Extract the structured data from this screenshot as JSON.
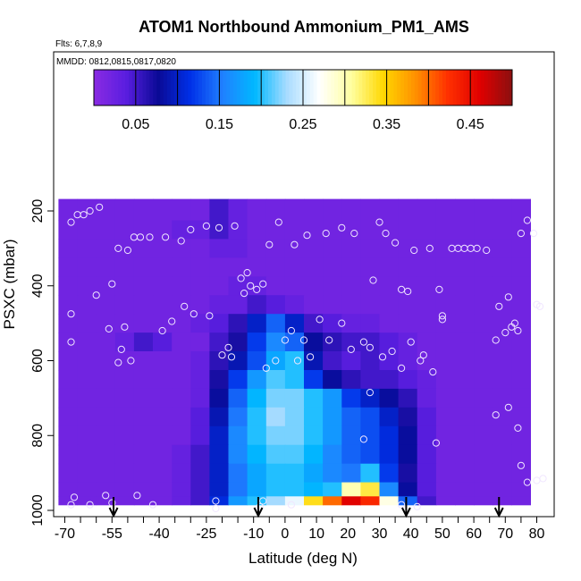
{
  "chart_data": {
    "type": "heatmap",
    "title": "ATOM1 Northbound Ammonium_PM1_AMS",
    "flights_label": "Flts: 6,7,8,9",
    "dates_label": "MMDD: 0812,0815,0817,0820",
    "xlabel": "Latitude (deg N)",
    "ylabel": "PSXC (mbar)",
    "xlim": [
      -70,
      85
    ],
    "ylim": [
      1000,
      0
    ],
    "x_ticks": [
      "-70",
      "-65",
      "-60",
      "-55",
      "-50",
      "-45",
      "-40",
      "-35",
      "-30",
      "-25",
      "-20",
      "-15",
      "-10",
      "-5",
      "0",
      "5",
      "10",
      "15",
      "20",
      "25",
      "30",
      "35",
      "40",
      "45",
      "50",
      "55",
      "60",
      "65",
      "70",
      "75",
      "80"
    ],
    "x_tick_labels": [
      "-70",
      "-55",
      "-40",
      "-25",
      "-10",
      "0",
      "10",
      "20",
      "30",
      "40",
      "50",
      "60",
      "70",
      "80"
    ],
    "y_ticks": [
      200,
      400,
      600,
      800,
      1000
    ],
    "y_tick_labels": [
      "200",
      "400",
      "600",
      "800",
      "1000"
    ],
    "colorbar": {
      "range": [
        0,
        0.5
      ],
      "tick_values": [
        0.05,
        0.15,
        0.25,
        0.35,
        0.45
      ],
      "tick_labels": [
        "0.05",
        "0.15",
        "0.25",
        "0.35",
        "0.45"
      ]
    },
    "colormap": [
      "#8a2be2",
      "#5a1ee0",
      "#0a0a96",
      "#0030e8",
      "#2080ff",
      "#00b8ff",
      "#a8dcff",
      "#ffffff",
      "#ffffa0",
      "#ffd700",
      "#ff9000",
      "#ff3000",
      "#e00000",
      "#8b1010"
    ],
    "lat_bins": [
      -69,
      -63,
      -57,
      -51,
      -45,
      -39,
      -33,
      -27,
      -21,
      -15,
      -9,
      -3,
      3,
      9,
      15,
      21,
      27,
      33,
      39,
      45,
      51,
      57,
      63,
      69,
      75
    ],
    "pressure_bins": [
      200,
      250,
      300,
      350,
      400,
      450,
      500,
      550,
      600,
      650,
      700,
      750,
      800,
      850,
      900,
      950,
      975
    ],
    "grid_values": [
      [
        0.02,
        0.02,
        0.02,
        0.02,
        0.02,
        0.02,
        0.02,
        0.02,
        0.05,
        0.03,
        0.02,
        0.02,
        0.02,
        0.02,
        0.02,
        0.02,
        0.02,
        0.02,
        0.02,
        0.02,
        0.02,
        0.02,
        0.02,
        0.02,
        0.02
      ],
      [
        0.02,
        0.02,
        0.02,
        0.02,
        0.02,
        0.02,
        0.03,
        0.03,
        0.05,
        0.03,
        0.02,
        0.02,
        0.02,
        0.02,
        0.02,
        0.02,
        0.02,
        0.02,
        0.02,
        0.02,
        0.02,
        0.02,
        0.02,
        0.02,
        0.02
      ],
      [
        0.02,
        0.02,
        0.02,
        0.02,
        0.02,
        0.02,
        0.02,
        0.02,
        0.03,
        0.03,
        0.02,
        0.02,
        0.02,
        0.02,
        0.02,
        0.02,
        0.02,
        0.02,
        0.02,
        0.02,
        0.02,
        0.02,
        0.02,
        0.02,
        0.02
      ],
      [
        0.02,
        0.02,
        0.02,
        0.02,
        0.02,
        0.02,
        0.02,
        0.02,
        0.02,
        0.02,
        0.02,
        0.02,
        0.02,
        0.02,
        0.02,
        0.02,
        0.02,
        0.02,
        0.02,
        0.02,
        0.02,
        0.02,
        0.02,
        0.02,
        0.02
      ],
      [
        0.02,
        0.02,
        0.02,
        0.02,
        0.02,
        0.02,
        0.02,
        0.02,
        0.02,
        0.03,
        0.03,
        0.02,
        0.02,
        0.02,
        0.02,
        0.02,
        0.02,
        0.02,
        0.02,
        0.02,
        0.02,
        0.02,
        0.02,
        0.02,
        0.02
      ],
      [
        0.02,
        0.02,
        0.02,
        0.02,
        0.02,
        0.02,
        0.02,
        0.02,
        0.03,
        0.03,
        0.05,
        0.04,
        0.03,
        0.02,
        0.02,
        0.02,
        0.02,
        0.02,
        0.02,
        0.02,
        0.02,
        0.02,
        0.02,
        0.02,
        0.02
      ],
      [
        0.02,
        0.02,
        0.02,
        0.02,
        0.02,
        0.02,
        0.02,
        0.03,
        0.04,
        0.06,
        0.1,
        0.14,
        0.1,
        0.05,
        0.04,
        0.03,
        0.03,
        0.02,
        0.02,
        0.02,
        0.02,
        0.02,
        0.02,
        0.02,
        0.02
      ],
      [
        0.02,
        0.02,
        0.02,
        0.03,
        0.05,
        0.04,
        0.02,
        0.02,
        0.05,
        0.07,
        0.12,
        0.16,
        0.14,
        0.08,
        0.06,
        0.05,
        0.05,
        0.04,
        0.03,
        0.02,
        0.02,
        0.02,
        0.02,
        0.02,
        0.02
      ],
      [
        0.02,
        0.02,
        0.02,
        0.02,
        0.02,
        0.02,
        0.02,
        0.03,
        0.06,
        0.09,
        0.13,
        0.18,
        0.2,
        0.09,
        0.05,
        0.04,
        0.05,
        0.04,
        0.03,
        0.02,
        0.02,
        0.02,
        0.02,
        0.02,
        0.02
      ],
      [
        0.02,
        0.02,
        0.02,
        0.02,
        0.02,
        0.02,
        0.02,
        0.03,
        0.07,
        0.12,
        0.17,
        0.21,
        0.2,
        0.12,
        0.08,
        0.06,
        0.05,
        0.05,
        0.04,
        0.03,
        0.02,
        0.02,
        0.02,
        0.02,
        0.02
      ],
      [
        0.02,
        0.02,
        0.02,
        0.02,
        0.02,
        0.02,
        0.02,
        0.03,
        0.08,
        0.14,
        0.19,
        0.22,
        0.22,
        0.2,
        0.17,
        0.12,
        0.1,
        0.08,
        0.06,
        0.03,
        0.02,
        0.02,
        0.02,
        0.02,
        0.02
      ],
      [
        0.02,
        0.02,
        0.02,
        0.02,
        0.02,
        0.02,
        0.02,
        0.04,
        0.09,
        0.15,
        0.2,
        0.23,
        0.22,
        0.2,
        0.17,
        0.14,
        0.13,
        0.1,
        0.07,
        0.04,
        0.02,
        0.02,
        0.02,
        0.02,
        0.02
      ],
      [
        0.02,
        0.02,
        0.02,
        0.02,
        0.02,
        0.02,
        0.02,
        0.04,
        0.1,
        0.16,
        0.2,
        0.22,
        0.22,
        0.2,
        0.17,
        0.14,
        0.13,
        0.11,
        0.08,
        0.04,
        0.02,
        0.02,
        0.02,
        0.02,
        0.02
      ],
      [
        0.02,
        0.02,
        0.02,
        0.02,
        0.02,
        0.02,
        0.03,
        0.05,
        0.1,
        0.16,
        0.19,
        0.21,
        0.21,
        0.19,
        0.16,
        0.14,
        0.13,
        0.11,
        0.08,
        0.04,
        0.02,
        0.02,
        0.02,
        0.02,
        0.02
      ],
      [
        0.02,
        0.02,
        0.02,
        0.02,
        0.02,
        0.02,
        0.03,
        0.05,
        0.1,
        0.15,
        0.18,
        0.2,
        0.2,
        0.18,
        0.16,
        0.15,
        0.2,
        0.12,
        0.07,
        0.04,
        0.02,
        0.02,
        0.02,
        0.02,
        0.02
      ],
      [
        0.02,
        0.02,
        0.02,
        0.02,
        0.02,
        0.02,
        0.03,
        0.05,
        0.1,
        0.15,
        0.18,
        0.2,
        0.2,
        0.19,
        0.2,
        0.3,
        0.33,
        0.16,
        0.08,
        0.04,
        0.02,
        0.02,
        0.02,
        0.02,
        0.02
      ],
      [
        0.02,
        0.02,
        0.02,
        0.02,
        0.02,
        0.02,
        0.03,
        0.05,
        0.11,
        0.17,
        0.2,
        0.23,
        0.26,
        0.34,
        0.4,
        0.46,
        0.43,
        0.28,
        0.14,
        0.05,
        0.02,
        0.02,
        0.02,
        0.02,
        0.02
      ]
    ],
    "sample_points": [
      [
        -68,
        230
      ],
      [
        -66,
        210
      ],
      [
        -64,
        210
      ],
      [
        -62,
        200
      ],
      [
        -59,
        190
      ],
      [
        -68,
        475
      ],
      [
        -68,
        550
      ],
      [
        -60,
        425
      ],
      [
        -56,
        515
      ],
      [
        -51,
        510
      ],
      [
        -55,
        395
      ],
      [
        -53,
        300
      ],
      [
        -50,
        305
      ],
      [
        -48,
        270
      ],
      [
        -46,
        270
      ],
      [
        -43,
        270
      ],
      [
        -38,
        270
      ],
      [
        -33,
        280
      ],
      [
        -30,
        250
      ],
      [
        -25,
        240
      ],
      [
        -21,
        245
      ],
      [
        -16,
        240
      ],
      [
        -14,
        380
      ],
      [
        -12,
        365
      ],
      [
        -11,
        400
      ],
      [
        -7,
        395
      ],
      [
        -5,
        290
      ],
      [
        -2,
        230
      ],
      [
        3,
        290
      ],
      [
        7,
        265
      ],
      [
        13,
        260
      ],
      [
        18,
        245
      ],
      [
        22,
        260
      ],
      [
        28,
        385
      ],
      [
        30,
        230
      ],
      [
        32,
        260
      ],
      [
        35,
        285
      ],
      [
        37,
        410
      ],
      [
        39,
        415
      ],
      [
        41,
        305
      ],
      [
        43,
        600
      ],
      [
        46,
        300
      ],
      [
        49,
        410
      ],
      [
        50,
        480
      ],
      [
        53,
        300
      ],
      [
        55,
        300
      ],
      [
        57,
        300
      ],
      [
        59,
        300
      ],
      [
        61,
        300
      ],
      [
        64,
        305
      ],
      [
        67,
        545
      ],
      [
        68,
        455
      ],
      [
        70,
        525
      ],
      [
        71,
        430
      ],
      [
        72,
        510
      ],
      [
        73,
        500
      ],
      [
        74,
        520
      ],
      [
        75,
        260
      ],
      [
        77,
        225
      ],
      [
        79,
        260
      ],
      [
        80,
        450
      ],
      [
        81,
        455
      ],
      [
        82,
        915
      ],
      [
        80,
        920
      ],
      [
        77,
        925
      ],
      [
        75,
        880
      ],
      [
        74,
        780
      ],
      [
        71,
        725
      ],
      [
        67,
        745
      ],
      [
        -67,
        965
      ],
      [
        -57,
        960
      ],
      [
        -52,
        570
      ],
      [
        -53,
        605
      ],
      [
        -49,
        600
      ],
      [
        -47,
        960
      ],
      [
        -42,
        985
      ],
      [
        -39,
        520
      ],
      [
        -36,
        495
      ],
      [
        -32,
        455
      ],
      [
        -29,
        475
      ],
      [
        -24,
        480
      ],
      [
        -20,
        585
      ],
      [
        -18,
        565
      ],
      [
        -17,
        590
      ],
      [
        -13,
        420
      ],
      [
        -9,
        410
      ],
      [
        -8,
        990
      ],
      [
        -6,
        620
      ],
      [
        -3,
        600
      ],
      [
        0,
        545
      ],
      [
        2,
        520
      ],
      [
        4,
        600
      ],
      [
        6,
        545
      ],
      [
        8,
        590
      ],
      [
        11,
        490
      ],
      [
        14,
        545
      ],
      [
        18,
        500
      ],
      [
        21,
        570
      ],
      [
        25,
        550
      ],
      [
        27,
        565
      ],
      [
        31,
        590
      ],
      [
        34,
        575
      ],
      [
        37,
        620
      ],
      [
        40,
        550
      ],
      [
        44,
        585
      ],
      [
        47,
        630
      ],
      [
        50,
        490
      ],
      [
        27,
        685
      ],
      [
        25,
        810
      ],
      [
        48,
        820
      ],
      [
        -55,
        980
      ],
      [
        -62,
        985
      ],
      [
        -22,
        975
      ],
      [
        -22,
        995
      ],
      [
        -7,
        975
      ],
      [
        2,
        985
      ],
      [
        37,
        985
      ],
      [
        42,
        990
      ],
      [
        -68,
        985
      ]
    ],
    "flight_markers_lat": [
      -54.5,
      -8.5,
      38.5,
      68
    ]
  }
}
